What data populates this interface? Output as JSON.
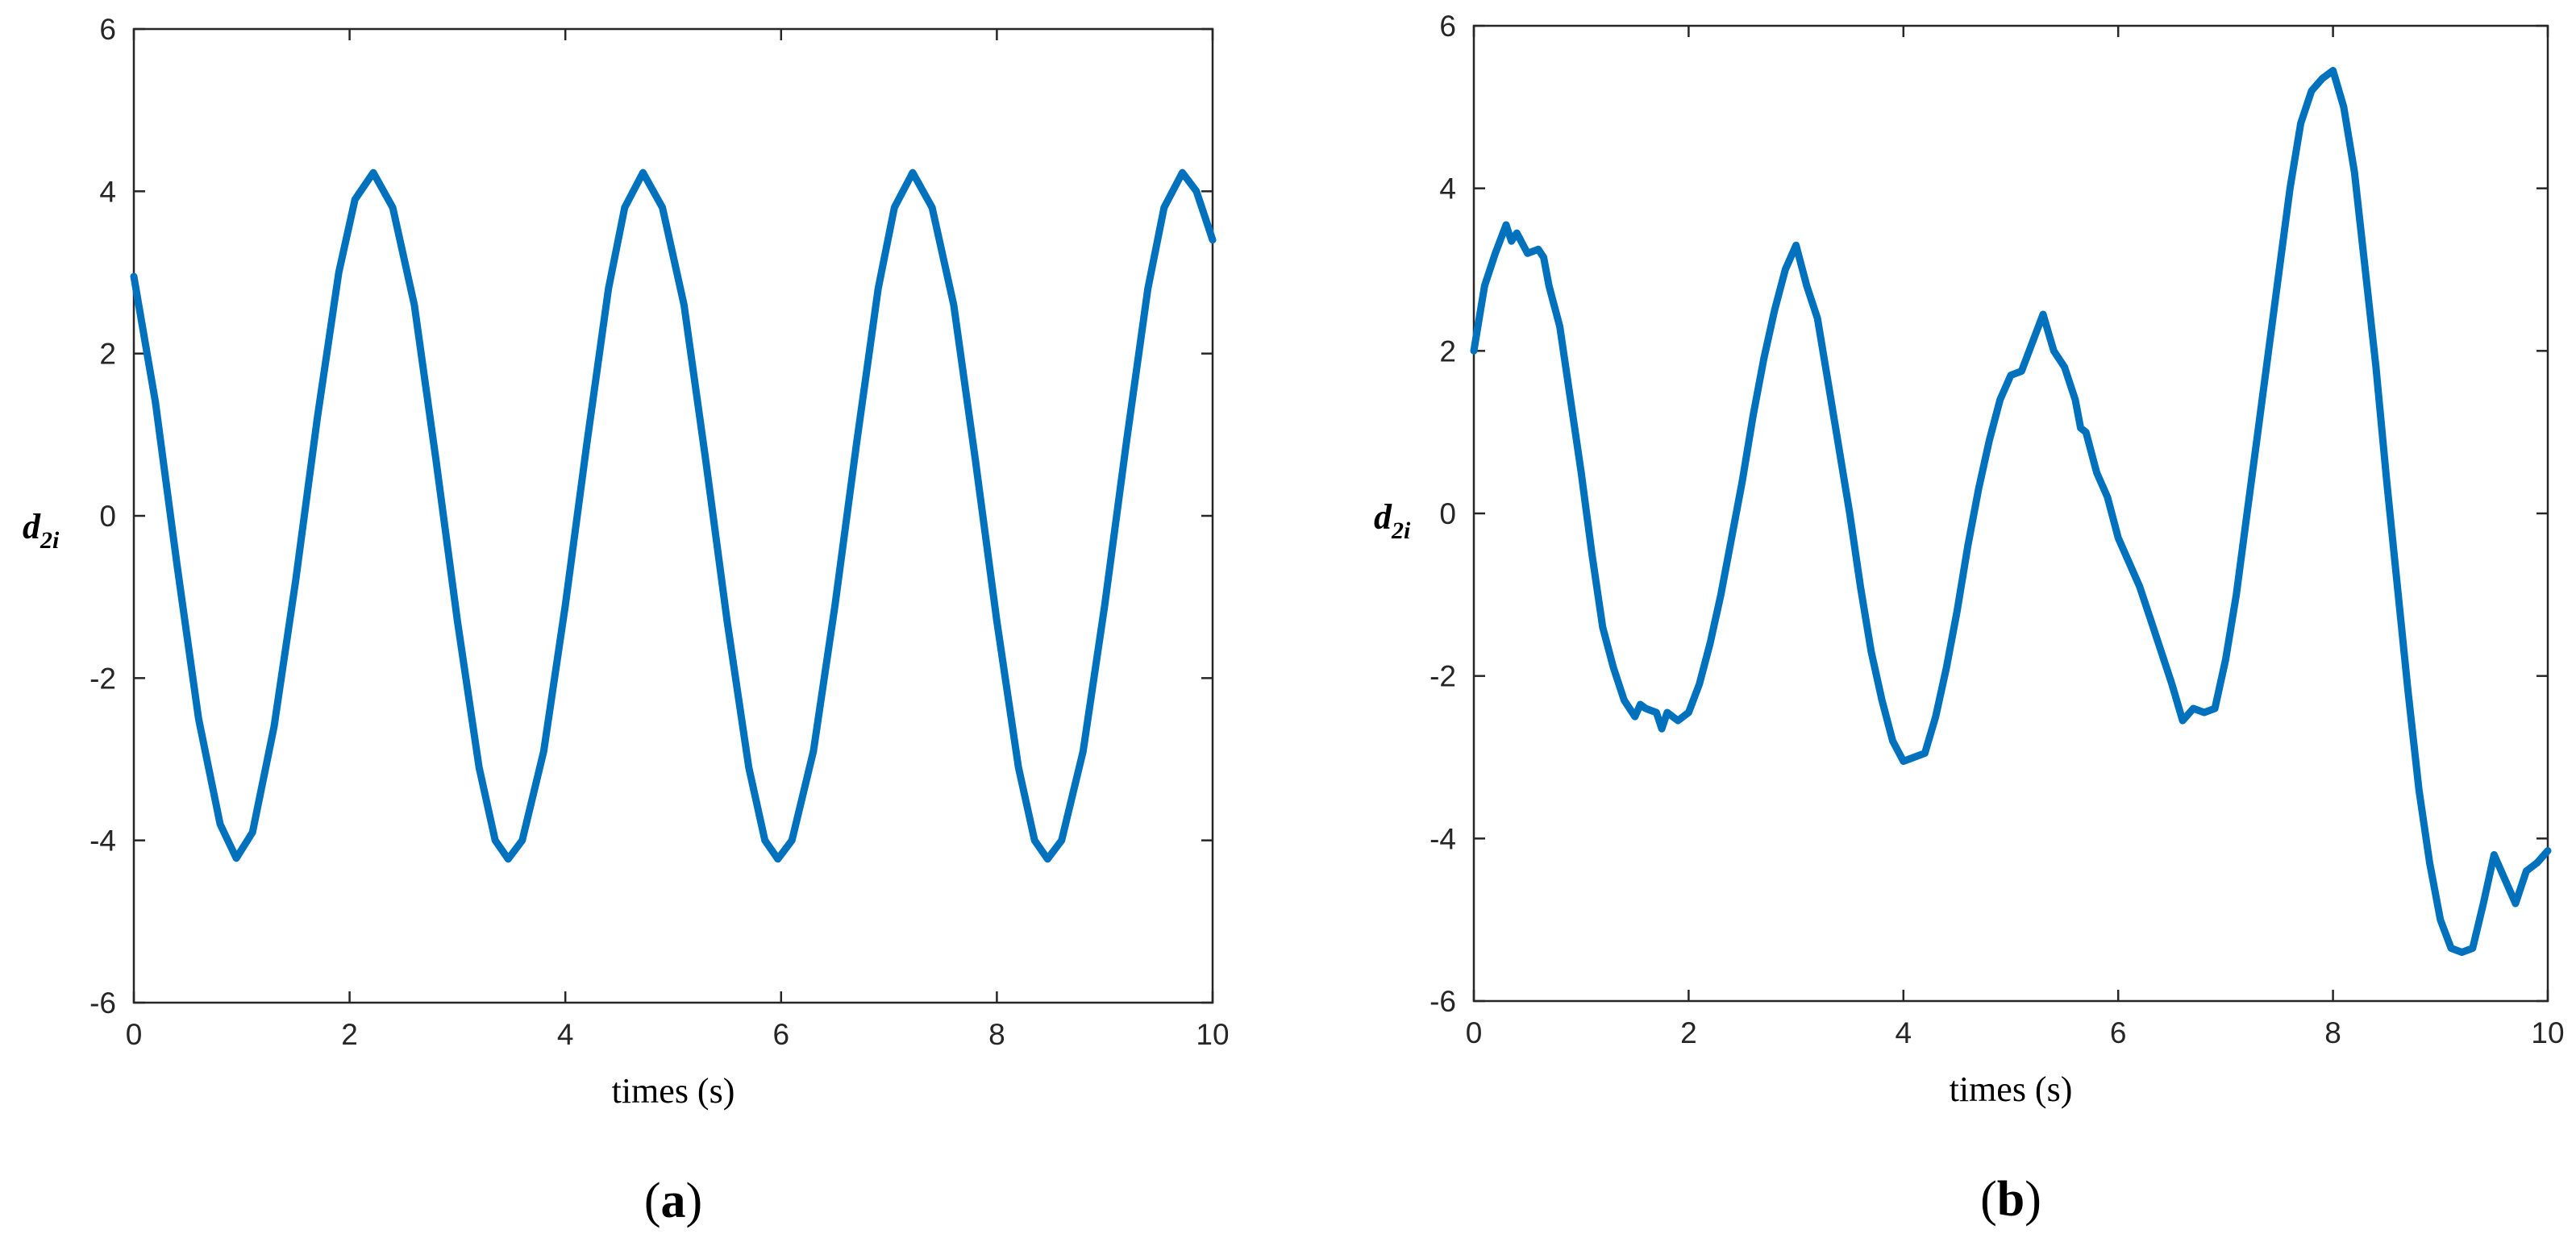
{
  "chart_data": [
    {
      "type": "line",
      "panel_label": "a",
      "xlabel": "times (s)",
      "ylabel": "d",
      "ylabel_subscript": "2i",
      "xlim": [
        0,
        10
      ],
      "ylim": [
        -6,
        6
      ],
      "xticks": [
        "0",
        "2",
        "4",
        "6",
        "8",
        "10"
      ],
      "yticks": [
        "6",
        "4",
        "2",
        "0",
        "-2",
        "-4",
        "-6"
      ],
      "grid": false,
      "color": "#0072BD",
      "series": [
        {
          "x": [
            0,
            0.2,
            0.4,
            0.6,
            0.8,
            0.95,
            1.1,
            1.3,
            1.5,
            1.7,
            1.9,
            2.05,
            2.22,
            2.4,
            2.6,
            2.8,
            3.0,
            3.2,
            3.35,
            3.47,
            3.6,
            3.8,
            4.0,
            4.2,
            4.4,
            4.55,
            4.72,
            4.9,
            5.1,
            5.3,
            5.5,
            5.7,
            5.85,
            5.97,
            6.1,
            6.3,
            6.5,
            6.7,
            6.9,
            7.05,
            7.22,
            7.4,
            7.6,
            7.8,
            8.0,
            8.2,
            8.35,
            8.47,
            8.6,
            8.8,
            9.0,
            9.2,
            9.4,
            9.55,
            9.72,
            9.85,
            10.0
          ],
          "y": [
            2.95,
            1.4,
            -0.6,
            -2.5,
            -3.8,
            -4.22,
            -3.9,
            -2.6,
            -0.8,
            1.2,
            3.0,
            3.9,
            4.23,
            3.8,
            2.6,
            0.7,
            -1.3,
            -3.1,
            -4.0,
            -4.23,
            -4.0,
            -2.9,
            -1.1,
            0.9,
            2.8,
            3.8,
            4.23,
            3.8,
            2.6,
            0.7,
            -1.3,
            -3.1,
            -4.0,
            -4.23,
            -4.0,
            -2.9,
            -1.1,
            0.9,
            2.8,
            3.8,
            4.23,
            3.8,
            2.6,
            0.7,
            -1.3,
            -3.1,
            -4.0,
            -4.23,
            -4.0,
            -2.9,
            -1.1,
            0.9,
            2.8,
            3.8,
            4.23,
            4.0,
            3.4
          ]
        }
      ]
    },
    {
      "type": "line",
      "panel_label": "b",
      "xlabel": "times (s)",
      "ylabel": "d",
      "ylabel_subscript": "2i",
      "xlim": [
        0,
        10
      ],
      "ylim": [
        -6,
        6
      ],
      "xticks": [
        "0",
        "2",
        "4",
        "6",
        "8",
        "10"
      ],
      "yticks": [
        "6",
        "4",
        "2",
        "0",
        "-2",
        "-4",
        "-6"
      ],
      "grid": false,
      "color": "#0072BD",
      "series": [
        {
          "x": [
            0,
            0.1,
            0.2,
            0.3,
            0.35,
            0.4,
            0.5,
            0.6,
            0.65,
            0.7,
            0.8,
            0.9,
            1.0,
            1.1,
            1.2,
            1.3,
            1.4,
            1.5,
            1.55,
            1.6,
            1.7,
            1.75,
            1.8,
            1.9,
            2.0,
            2.1,
            2.2,
            2.3,
            2.4,
            2.5,
            2.6,
            2.7,
            2.8,
            2.9,
            3.0,
            3.1,
            3.2,
            3.3,
            3.4,
            3.5,
            3.6,
            3.7,
            3.8,
            3.9,
            4.0,
            4.1,
            4.2,
            4.3,
            4.4,
            4.5,
            4.6,
            4.7,
            4.8,
            4.9,
            5.0,
            5.1,
            5.2,
            5.3,
            5.4,
            5.5,
            5.6,
            5.65,
            5.7,
            5.8,
            5.9,
            6.0,
            6.1,
            6.2,
            6.3,
            6.4,
            6.5,
            6.6,
            6.7,
            6.8,
            6.9,
            7.0,
            7.1,
            7.2,
            7.3,
            7.4,
            7.5,
            7.6,
            7.7,
            7.8,
            7.9,
            8.0,
            8.1,
            8.2,
            8.3,
            8.4,
            8.5,
            8.6,
            8.7,
            8.8,
            8.9,
            9.0,
            9.1,
            9.2,
            9.3,
            9.4,
            9.5,
            9.6,
            9.7,
            9.8,
            9.9,
            10.0
          ],
          "y": [
            2.0,
            2.8,
            3.2,
            3.55,
            3.35,
            3.45,
            3.2,
            3.25,
            3.15,
            2.8,
            2.3,
            1.4,
            0.5,
            -0.5,
            -1.4,
            -1.9,
            -2.3,
            -2.5,
            -2.35,
            -2.4,
            -2.45,
            -2.65,
            -2.45,
            -2.55,
            -2.45,
            -2.1,
            -1.6,
            -1.0,
            -0.3,
            0.4,
            1.2,
            1.9,
            2.5,
            3.0,
            3.3,
            2.8,
            2.4,
            1.6,
            0.8,
            0.0,
            -0.9,
            -1.7,
            -2.3,
            -2.8,
            -3.05,
            -3.0,
            -2.95,
            -2.5,
            -1.9,
            -1.2,
            -0.4,
            0.3,
            0.9,
            1.4,
            1.7,
            1.75,
            2.1,
            2.45,
            2.0,
            1.8,
            1.4,
            1.05,
            1.0,
            0.5,
            0.2,
            -0.3,
            -0.6,
            -0.9,
            -1.3,
            -1.7,
            -2.1,
            -2.55,
            -2.4,
            -2.45,
            -2.4,
            -1.8,
            -1.0,
            0.0,
            1.0,
            2.0,
            3.0,
            4.0,
            4.8,
            5.2,
            5.35,
            5.45,
            5.0,
            4.2,
            3.0,
            1.8,
            0.4,
            -0.9,
            -2.2,
            -3.4,
            -4.3,
            -5.0,
            -5.35,
            -5.4,
            -5.35,
            -4.8,
            -4.2,
            -4.5,
            -4.8,
            -4.4,
            -4.3,
            -4.15
          ]
        }
      ]
    }
  ]
}
